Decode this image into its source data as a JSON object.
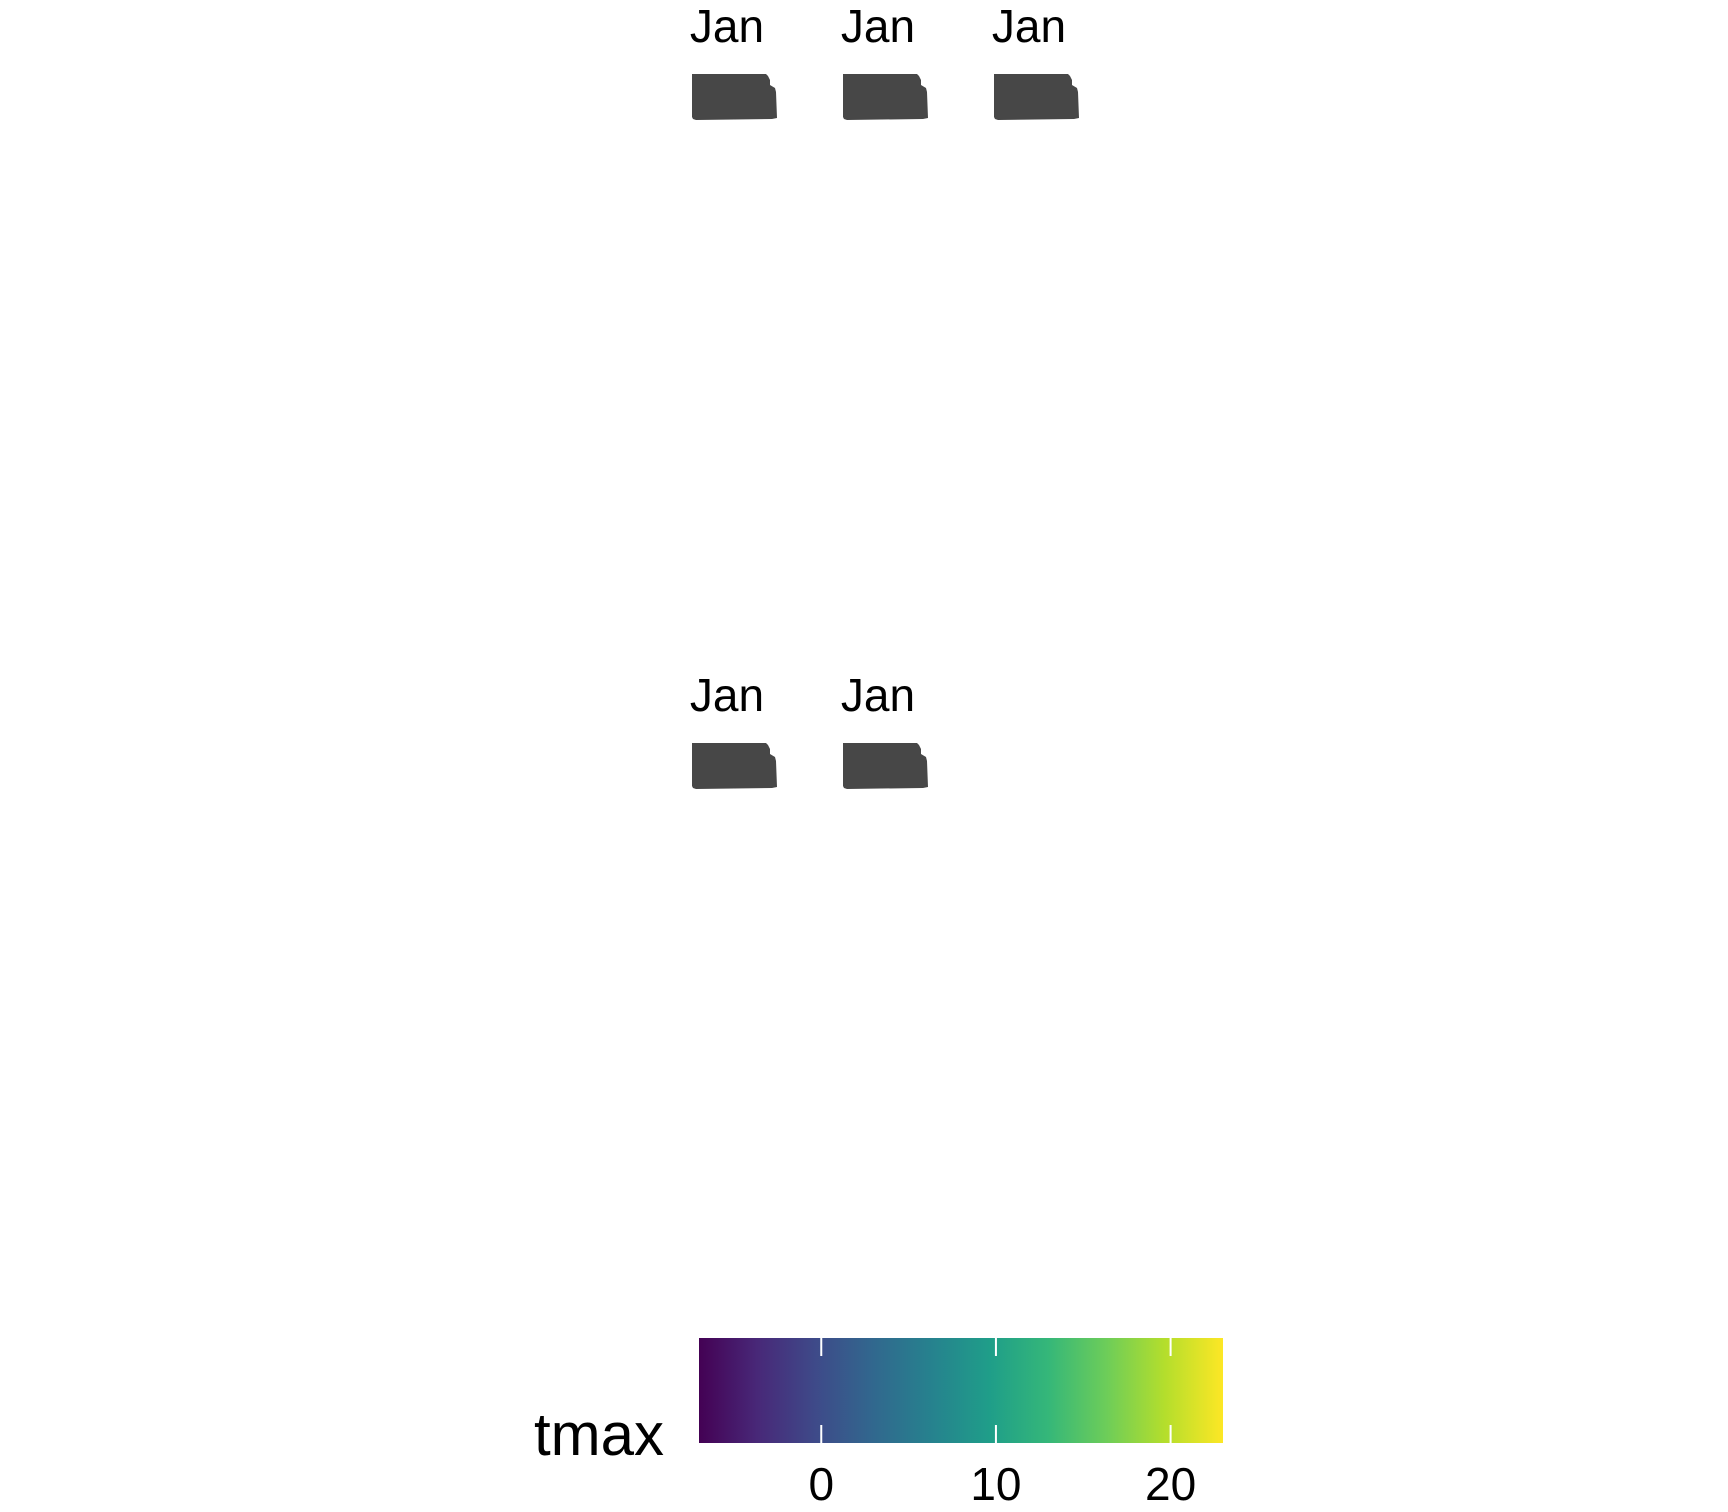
{
  "chart_data": {
    "type": "heatmap",
    "title": "",
    "xlabel": "",
    "ylabel": "",
    "grid": false,
    "facets": [
      {
        "label": "Jan"
      },
      {
        "label": "Jan"
      },
      {
        "label": "Jan"
      },
      {
        "label": "Jan"
      },
      {
        "label": "Jan"
      }
    ],
    "region_fill_color": "#474747",
    "legend": {
      "title": "tmax",
      "position": "bottom",
      "palette": "viridis",
      "limits": [
        -7,
        23
      ],
      "breaks": [
        0,
        10,
        20
      ],
      "break_labels": [
        "0",
        "10",
        "20"
      ],
      "colors": [
        "#440154",
        "#482878",
        "#3E4A89",
        "#31688E",
        "#26828E",
        "#1F9E89",
        "#35B779",
        "#6DCD59",
        "#B4DE2C",
        "#FDE725"
      ]
    }
  }
}
